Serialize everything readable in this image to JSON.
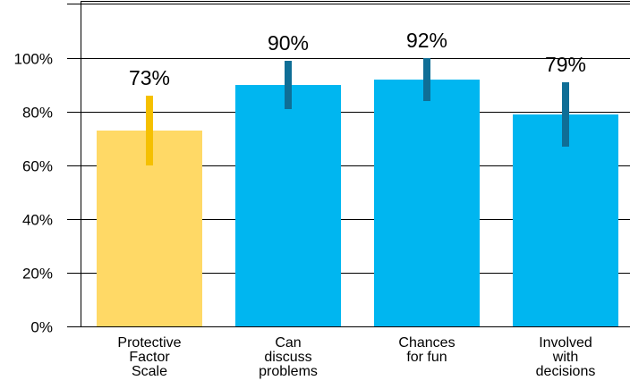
{
  "chart_data": {
    "type": "bar",
    "categories": [
      [
        "Protective",
        "Factor",
        "Scale"
      ],
      [
        "Can",
        "discuss",
        "problems"
      ],
      [
        "Chances",
        "for fun"
      ],
      [
        "Involved",
        "with",
        "decisions"
      ]
    ],
    "values": [
      73,
      90,
      92,
      79
    ],
    "data_labels": [
      "73%",
      "90%",
      "92%",
      "79%"
    ],
    "error_low": [
      60,
      81,
      84,
      67
    ],
    "error_high": [
      86,
      99,
      100,
      91
    ],
    "ylim": [
      0,
      120
    ],
    "yticks": [
      0,
      20,
      40,
      60,
      80,
      100
    ],
    "ytick_labels": [
      "0%",
      "20%",
      "40%",
      "60%",
      "80%",
      "100%"
    ],
    "grid": true,
    "colors": {
      "bars": [
        "#FFD966",
        "#00B6F0",
        "#00B6F0",
        "#00B6F0"
      ],
      "error_bars": [
        "#F5C000",
        "#0F6E96",
        "#0F6E96",
        "#0F6E96"
      ],
      "gridline": "#000000"
    }
  }
}
